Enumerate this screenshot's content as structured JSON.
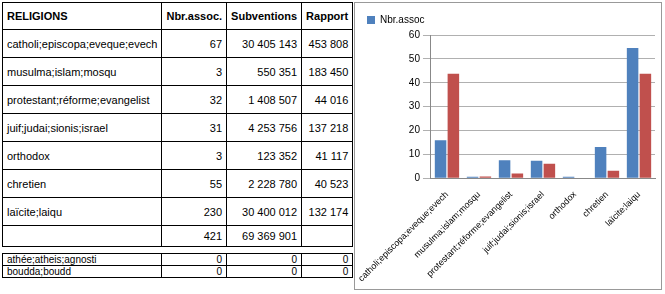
{
  "table": {
    "header": [
      "RELIGIONS",
      "Nbr.assoc.",
      "Subventions",
      "Rapport"
    ],
    "rows": [
      [
        "catholi;episcopa;eveque;evech",
        "67",
        "30 405 143",
        "453 808"
      ],
      [
        "musulma;islam;mosqu",
        "3",
        "550 351",
        "183 450"
      ],
      [
        "protestant;réforme;evangelist",
        "32",
        "1 408 507",
        "44 016"
      ],
      [
        "juif;judai;sionis;israel",
        "31",
        "4 253 756",
        "137 218"
      ],
      [
        "orthodox",
        "3",
        "123 352",
        "41 117"
      ],
      [
        "chretien",
        "55",
        "2 228 780",
        "40 523"
      ],
      [
        "laïcite;laiqu",
        "230",
        "30 400 012",
        "132 174"
      ]
    ],
    "total": [
      null,
      "421",
      "69 369 901",
      null
    ],
    "extra_rows": [
      [
        "athée;atheis;agnosti",
        "0",
        "0",
        "0"
      ],
      [
        "boudda;boudd",
        "0",
        "0",
        "0"
      ]
    ]
  },
  "chart_data": {
    "type": "bar",
    "categories": [
      "catholi;episcopa;eveque;evech",
      "musulma;islam;mosqu",
      "protestant;réforme;evangelist",
      "juif;judai;sionis;israel",
      "orthodox",
      "chretien",
      "laïcite;laiqu"
    ],
    "series": [
      {
        "name": "Nbr.assoc",
        "color": "#4f81bd",
        "values": [
          15.9,
          0.7,
          7.6,
          7.4,
          0.7,
          13.1,
          54.6
        ]
      },
      {
        "color": "#c0504d",
        "values": [
          43.8,
          0.8,
          2.0,
          6.1,
          0.2,
          3.2,
          43.8
        ]
      }
    ],
    "ylim": [
      0,
      60
    ],
    "yticks": [
      0,
      10,
      20,
      30,
      40,
      50,
      60
    ],
    "grid": true,
    "legend": "top left"
  }
}
